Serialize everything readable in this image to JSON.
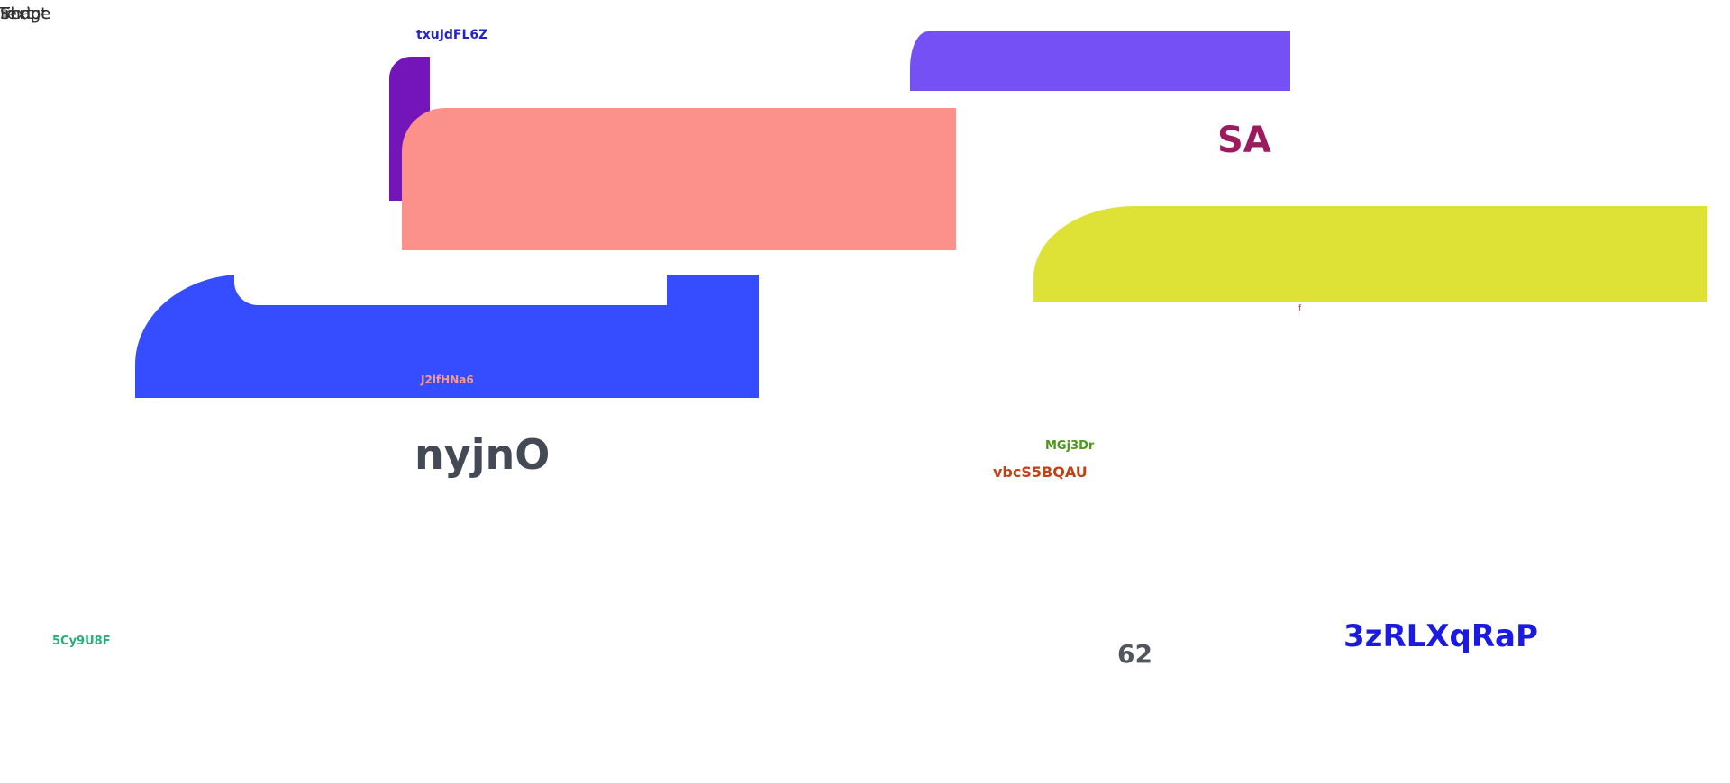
{
  "corner_labels": [
    "Script",
    "Text",
    "Image",
    "Shape"
  ],
  "labels": {
    "purple_top": {
      "text": "txuJdFL6Z",
      "color": "#2323C8"
    },
    "sa": {
      "text": "SA",
      "color": "#9C1A5E"
    },
    "tiny_f": {
      "text": "f",
      "color": "#C0392B"
    },
    "blue_bar": {
      "text": "J2lfHNa6",
      "color": "#F39C8A"
    },
    "nyjno": {
      "text": "nyjnO",
      "color": "#444A55"
    },
    "mgj3dr": {
      "text": "MGj3Dr",
      "color": "#4C9A14"
    },
    "vbcs": {
      "text": "vbcS5BQAU",
      "color": "#C0441A"
    },
    "cy9": {
      "text": "5Cy9U8F",
      "color": "#23B07A"
    },
    "num62": {
      "text": "62",
      "color": "#505560"
    },
    "zrl": {
      "text": "3zRLXqRaP",
      "color": "#1A1AE0"
    }
  },
  "shapes": {
    "purple_small": "#7415BA",
    "salmon": "#FC918C",
    "violet": "#7450F5",
    "yellow": "#DEE236",
    "blue": "#364DFF"
  }
}
